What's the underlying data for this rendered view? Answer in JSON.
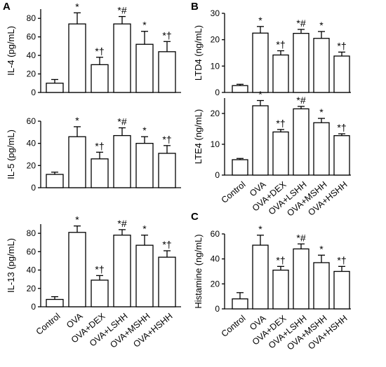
{
  "chart_data": [
    {
      "panel": "A",
      "type": "bar",
      "categories": [
        "Control",
        "OVA",
        "OVA+DEX",
        "OVA+LSHH",
        "OVA+MSHH",
        "OVA+HSHH"
      ],
      "values": [
        10,
        74,
        30,
        74,
        52,
        44
      ],
      "errors": [
        4,
        12,
        8,
        8,
        14,
        11
      ],
      "annotations": [
        "",
        "*",
        "*†",
        "*#",
        "*",
        "*†"
      ],
      "ylabel": "IL-4 (pg/mL)",
      "ylim": [
        0,
        90
      ],
      "yticks": [
        0,
        20,
        40,
        60,
        80
      ]
    },
    {
      "type": "bar",
      "categories": [
        "Control",
        "OVA",
        "OVA+DEX",
        "OVA+LSHH",
        "OVA+MSHH",
        "OVA+HSHH"
      ],
      "values": [
        12,
        46,
        26,
        47,
        40,
        31
      ],
      "errors": [
        2,
        9,
        6,
        7,
        6,
        7
      ],
      "annotations": [
        "",
        "*",
        "*†",
        "*#",
        "*",
        "*†"
      ],
      "ylabel": "IL-5 (pg/mL)",
      "ylim": [
        0,
        60
      ],
      "yticks": [
        0,
        20,
        40,
        60
      ]
    },
    {
      "type": "bar",
      "categories": [
        "Control",
        "OVA",
        "OVA+DEX",
        "OVA+LSHH",
        "OVA+MSHH",
        "OVA+HSHH"
      ],
      "values": [
        8,
        81,
        29,
        78,
        67,
        54
      ],
      "errors": [
        3,
        7,
        5,
        6,
        11,
        7
      ],
      "annotations": [
        "",
        "*",
        "*†",
        "*#",
        "*",
        "*†"
      ],
      "ylabel": "IL-13 (pg/mL)",
      "ylim": [
        0,
        90
      ],
      "yticks": [
        0,
        20,
        40,
        60,
        80
      ]
    },
    {
      "panel": "B",
      "type": "bar",
      "categories": [
        "Control",
        "OVA",
        "OVA+DEX",
        "OVA+LSHH",
        "OVA+MSHH",
        "OVA+HSHH"
      ],
      "values": [
        2.6,
        22.5,
        14.2,
        22.4,
        20.5,
        13.8
      ],
      "errors": [
        0.5,
        2.5,
        1.6,
        1.5,
        2.6,
        1.5
      ],
      "annotations": [
        "",
        "*",
        "*†",
        "*#",
        "*",
        "*†"
      ],
      "ylabel": "LTD4 (ng/mL)",
      "ylim": [
        0,
        30
      ],
      "yticks": [
        0,
        10,
        20,
        30
      ]
    },
    {
      "type": "bar",
      "categories": [
        "Control",
        "OVA",
        "OVA+DEX",
        "OVA+LSHH",
        "OVA+MSHH",
        "OVA+HSHH"
      ],
      "values": [
        5,
        22.5,
        14,
        21.5,
        17,
        12.8
      ],
      "errors": [
        0.4,
        1.7,
        0.8,
        0.8,
        1.4,
        0.6
      ],
      "annotations": [
        "",
        "*",
        "*†",
        "*#",
        "*",
        "*†"
      ],
      "ylabel": "LTE4 (ng/mL)",
      "ylim": [
        0,
        25
      ],
      "yticks": [
        0,
        10,
        20
      ]
    },
    {
      "panel": "C",
      "type": "bar",
      "categories": [
        "Control",
        "OVA",
        "OVA+DEX",
        "OVA+LSHH",
        "OVA+MSHH",
        "OVA+HSHH"
      ],
      "values": [
        8,
        51,
        31,
        48,
        37,
        30
      ],
      "errors": [
        5,
        8,
        3,
        4,
        6,
        4
      ],
      "annotations": [
        "",
        "*",
        "*†",
        "*#",
        "*",
        "*†"
      ],
      "ylabel": "Histamine (ng/mL)",
      "ylim": [
        0,
        60
      ],
      "yticks": [
        0,
        20,
        40,
        60
      ]
    }
  ]
}
